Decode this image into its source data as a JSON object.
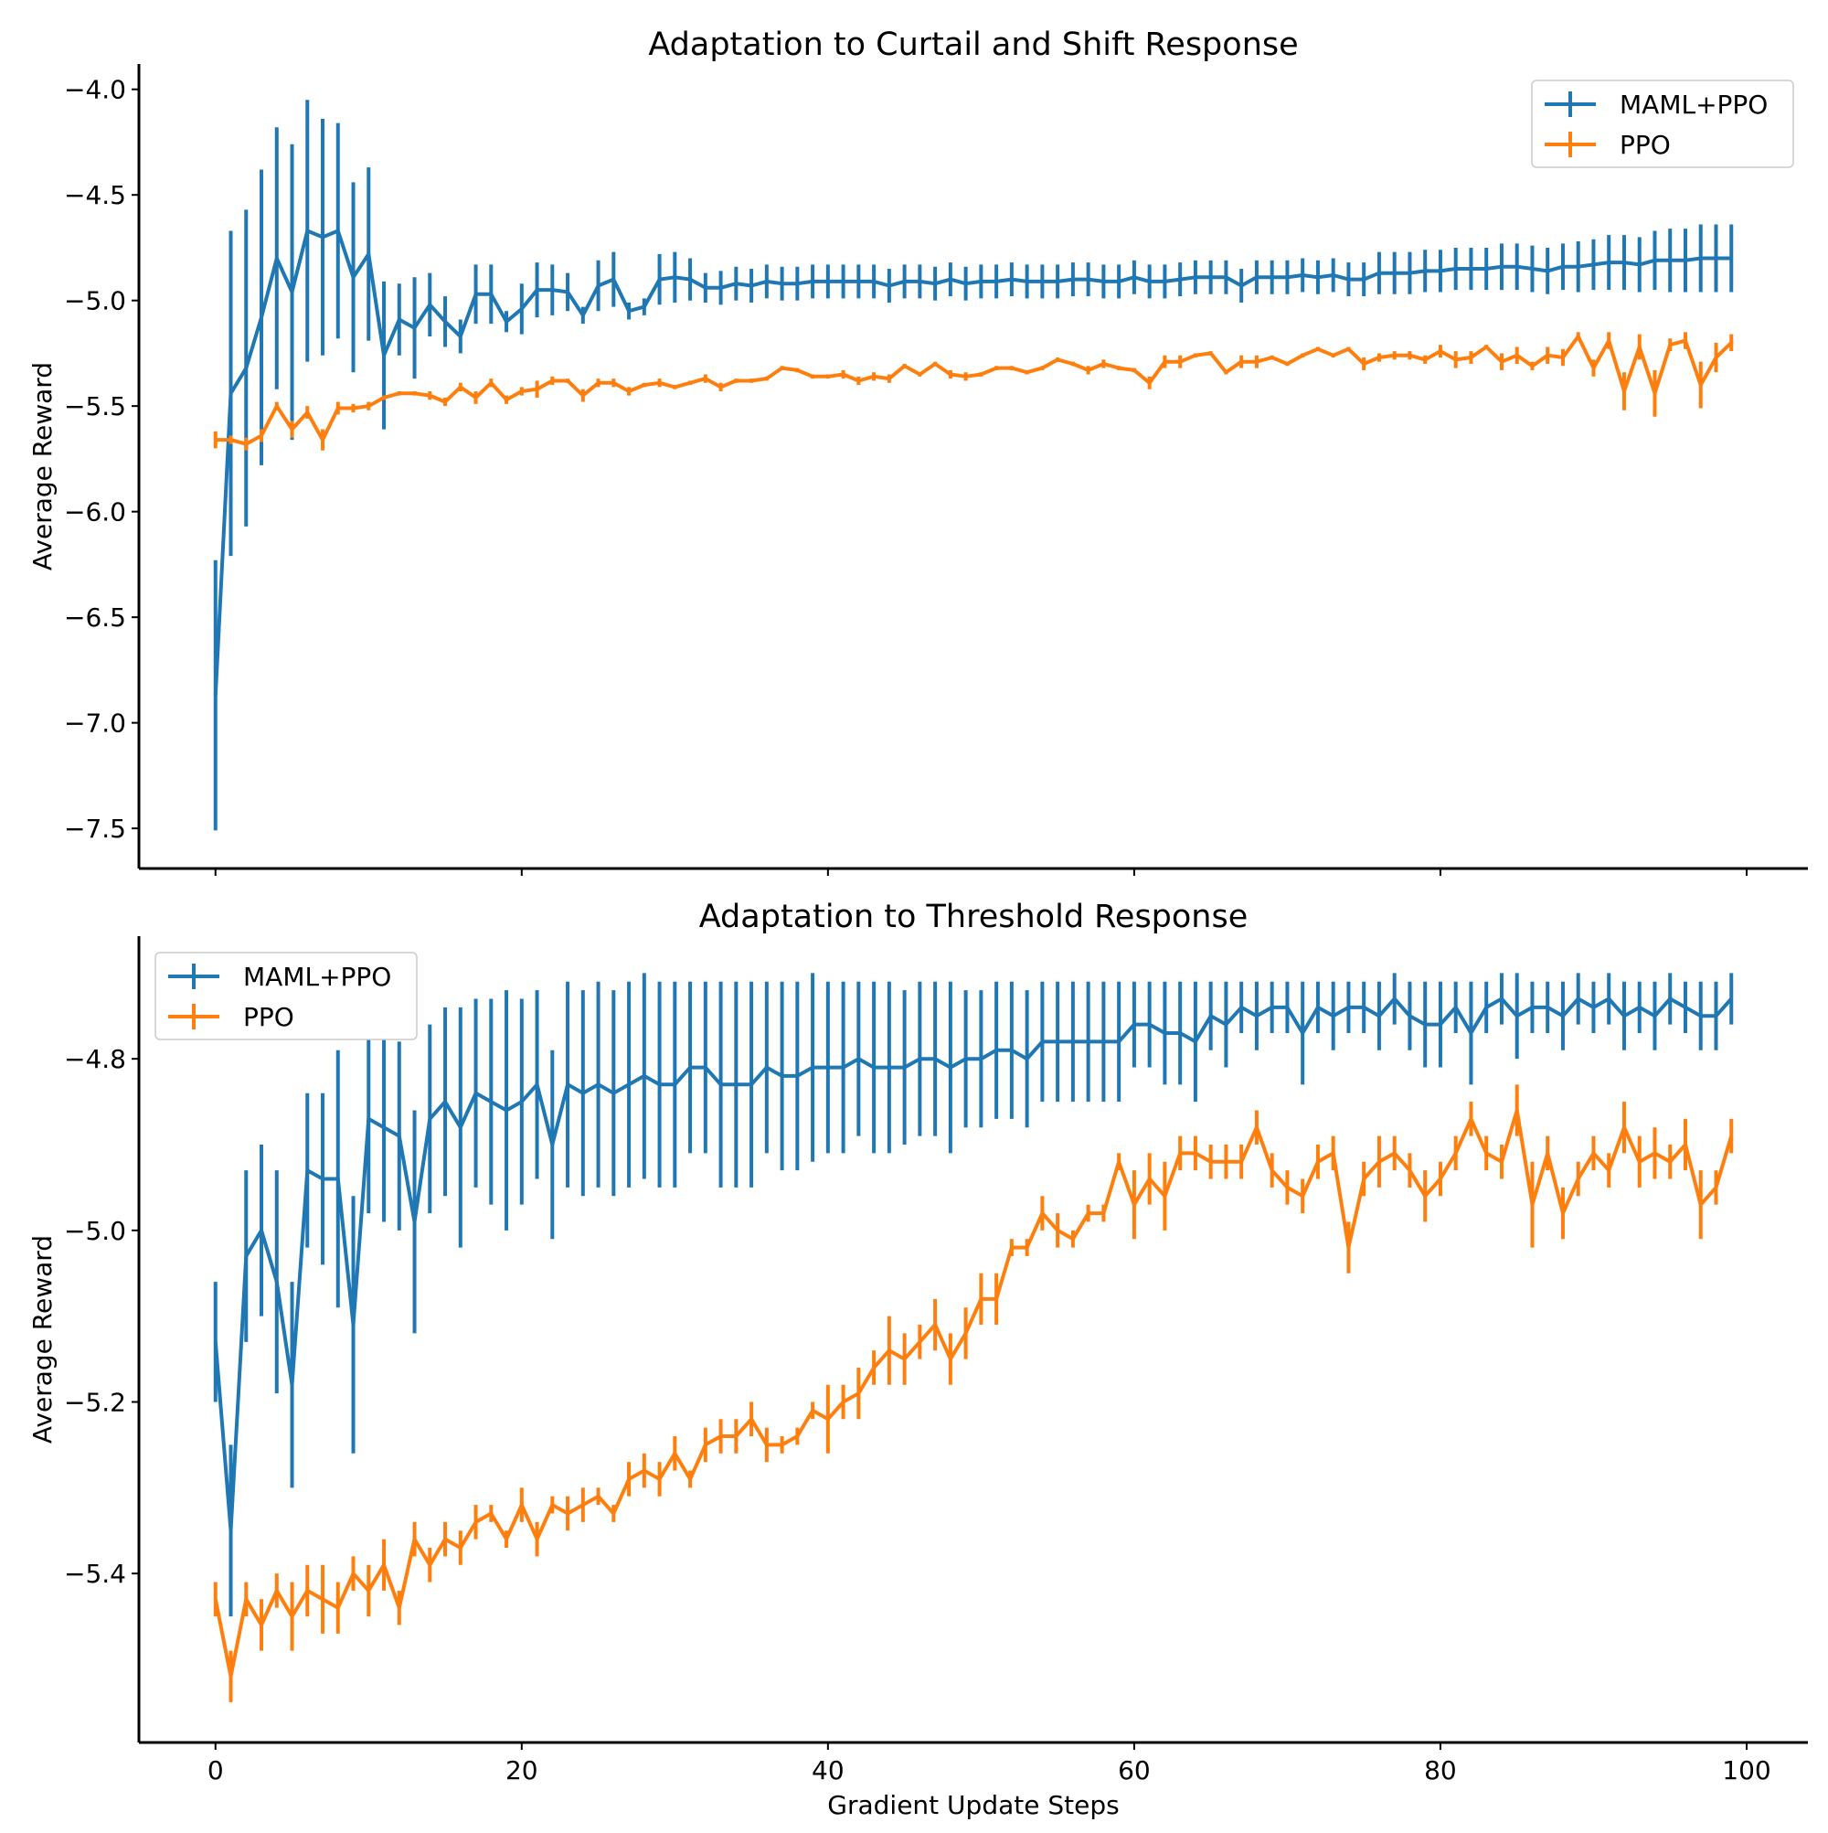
{
  "chart_data": [
    {
      "type": "line",
      "title": "Adaptation to Curtail and Shift Response",
      "xlabel": "",
      "ylabel": "Average Reward",
      "xlim": [
        -5,
        104
      ],
      "ylim": [
        -7.69,
        -3.88
      ],
      "xticks": [
        0,
        20,
        40,
        60,
        80,
        100
      ],
      "show_xtick_labels": false,
      "yticks": [
        -4.0,
        -4.5,
        -5.0,
        -5.5,
        -6.0,
        -6.5,
        -7.0,
        -7.5
      ],
      "ytick_labels": [
        "−4.0",
        "−4.5",
        "−5.0",
        "−5.5",
        "−6.0",
        "−6.5",
        "−7.0",
        "−7.5"
      ],
      "grid": false,
      "legend_position": "upper right",
      "x": [
        0,
        1,
        2,
        3,
        4,
        5,
        6,
        7,
        8,
        9,
        10,
        11,
        12,
        13,
        14,
        15,
        16,
        17,
        18,
        19,
        20,
        21,
        22,
        23,
        24,
        25,
        26,
        27,
        28,
        29,
        30,
        31,
        32,
        33,
        34,
        35,
        36,
        37,
        38,
        39,
        40,
        41,
        42,
        43,
        44,
        45,
        46,
        47,
        48,
        49,
        50,
        51,
        52,
        53,
        54,
        55,
        56,
        57,
        58,
        59,
        60,
        61,
        62,
        63,
        64,
        65,
        66,
        67,
        68,
        69,
        70,
        71,
        72,
        73,
        74,
        75,
        76,
        77,
        78,
        79,
        80,
        81,
        82,
        83,
        84,
        85,
        86,
        87,
        88,
        89,
        90,
        91,
        92,
        93,
        94,
        95,
        96,
        97,
        98,
        99
      ],
      "series": [
        {
          "name": "MAML+PPO",
          "color": "#1f77b4",
          "values": [
            -6.87,
            -5.44,
            -5.32,
            -5.08,
            -4.8,
            -4.96,
            -4.67,
            -4.7,
            -4.67,
            -4.89,
            -4.78,
            -5.26,
            -5.09,
            -5.13,
            -5.02,
            -5.1,
            -5.17,
            -4.97,
            -4.97,
            -5.1,
            -5.04,
            -4.95,
            -4.95,
            -4.96,
            -5.07,
            -4.93,
            -4.9,
            -5.05,
            -5.03,
            -4.9,
            -4.89,
            -4.9,
            -4.94,
            -4.94,
            -4.92,
            -4.93,
            -4.91,
            -4.92,
            -4.92,
            -4.91,
            -4.91,
            -4.91,
            -4.91,
            -4.91,
            -4.93,
            -4.91,
            -4.91,
            -4.92,
            -4.9,
            -4.92,
            -4.91,
            -4.91,
            -4.9,
            -4.91,
            -4.91,
            -4.91,
            -4.9,
            -4.9,
            -4.91,
            -4.91,
            -4.89,
            -4.91,
            -4.91,
            -4.9,
            -4.89,
            -4.89,
            -4.89,
            -4.93,
            -4.89,
            -4.89,
            -4.89,
            -4.88,
            -4.89,
            -4.88,
            -4.9,
            -4.9,
            -4.87,
            -4.87,
            -4.87,
            -4.86,
            -4.86,
            -4.85,
            -4.85,
            -4.85,
            -4.84,
            -4.84,
            -4.85,
            -4.86,
            -4.84,
            -4.84,
            -4.83,
            -4.82,
            -4.82,
            -4.83,
            -4.81,
            -4.81,
            -4.81,
            -4.8,
            -4.8,
            -4.8
          ],
          "errors": [
            0.64,
            0.77,
            0.75,
            0.7,
            0.62,
            0.7,
            0.62,
            0.56,
            0.51,
            0.45,
            0.41,
            0.35,
            0.17,
            0.24,
            0.15,
            0.12,
            0.08,
            0.14,
            0.14,
            0.05,
            0.12,
            0.13,
            0.12,
            0.09,
            0.04,
            0.12,
            0.13,
            0.04,
            0.04,
            0.12,
            0.12,
            0.1,
            0.07,
            0.08,
            0.08,
            0.08,
            0.08,
            0.08,
            0.08,
            0.08,
            0.08,
            0.08,
            0.08,
            0.08,
            0.08,
            0.08,
            0.08,
            0.08,
            0.08,
            0.08,
            0.08,
            0.08,
            0.08,
            0.08,
            0.08,
            0.08,
            0.08,
            0.08,
            0.08,
            0.08,
            0.08,
            0.08,
            0.08,
            0.08,
            0.08,
            0.08,
            0.08,
            0.08,
            0.08,
            0.08,
            0.08,
            0.08,
            0.08,
            0.08,
            0.08,
            0.08,
            0.1,
            0.1,
            0.1,
            0.1,
            0.1,
            0.1,
            0.1,
            0.1,
            0.11,
            0.11,
            0.11,
            0.11,
            0.11,
            0.12,
            0.12,
            0.13,
            0.13,
            0.13,
            0.14,
            0.15,
            0.15,
            0.16,
            0.16,
            0.16
          ]
        },
        {
          "name": "PPO",
          "color": "#ff7f0e",
          "values": [
            -5.66,
            -5.66,
            -5.68,
            -5.64,
            -5.5,
            -5.61,
            -5.53,
            -5.66,
            -5.51,
            -5.51,
            -5.5,
            -5.46,
            -5.44,
            -5.44,
            -5.45,
            -5.48,
            -5.41,
            -5.46,
            -5.39,
            -5.47,
            -5.43,
            -5.42,
            -5.38,
            -5.38,
            -5.45,
            -5.39,
            -5.39,
            -5.43,
            -5.4,
            -5.39,
            -5.41,
            -5.39,
            -5.37,
            -5.41,
            -5.38,
            -5.38,
            -5.37,
            -5.32,
            -5.33,
            -5.36,
            -5.36,
            -5.35,
            -5.38,
            -5.36,
            -5.37,
            -5.31,
            -5.35,
            -5.3,
            -5.35,
            -5.36,
            -5.35,
            -5.32,
            -5.32,
            -5.34,
            -5.32,
            -5.28,
            -5.3,
            -5.33,
            -5.3,
            -5.32,
            -5.33,
            -5.39,
            -5.29,
            -5.29,
            -5.26,
            -5.25,
            -5.34,
            -5.29,
            -5.29,
            -5.27,
            -5.3,
            -5.26,
            -5.23,
            -5.26,
            -5.23,
            -5.3,
            -5.27,
            -5.26,
            -5.26,
            -5.28,
            -5.24,
            -5.28,
            -5.27,
            -5.22,
            -5.29,
            -5.26,
            -5.31,
            -5.26,
            -5.27,
            -5.17,
            -5.32,
            -5.19,
            -5.43,
            -5.22,
            -5.44,
            -5.21,
            -5.19,
            -5.4,
            -5.27,
            -5.2
          ],
          "errors": [
            0.04,
            0.02,
            0.03,
            0.03,
            0.02,
            0.04,
            0.03,
            0.05,
            0.03,
            0.02,
            0.02,
            0.01,
            0.01,
            0.01,
            0.02,
            0.02,
            0.02,
            0.03,
            0.02,
            0.02,
            0.02,
            0.04,
            0.02,
            0.01,
            0.03,
            0.02,
            0.02,
            0.02,
            0.01,
            0.02,
            0.01,
            0.01,
            0.02,
            0.02,
            0.01,
            0.01,
            0.01,
            0.01,
            0.01,
            0.01,
            0.01,
            0.02,
            0.02,
            0.02,
            0.02,
            0.01,
            0.01,
            0.01,
            0.02,
            0.02,
            0.01,
            0.01,
            0.01,
            0.01,
            0.01,
            0.01,
            0.01,
            0.02,
            0.02,
            0.01,
            0.01,
            0.03,
            0.03,
            0.03,
            0.01,
            0.01,
            0.01,
            0.03,
            0.03,
            0.01,
            0.01,
            0.01,
            0.01,
            0.01,
            0.01,
            0.03,
            0.02,
            0.02,
            0.02,
            0.02,
            0.03,
            0.04,
            0.03,
            0.01,
            0.04,
            0.04,
            0.02,
            0.04,
            0.04,
            0.02,
            0.04,
            0.04,
            0.09,
            0.06,
            0.11,
            0.03,
            0.04,
            0.11,
            0.07,
            0.04
          ]
        }
      ]
    },
    {
      "type": "line",
      "title": "Adaptation to Threshold Response",
      "xlabel": "Gradient Update Steps",
      "ylabel": "Average Reward",
      "xlim": [
        -5,
        104
      ],
      "ylim": [
        -5.597,
        -4.657
      ],
      "xticks": [
        0,
        20,
        40,
        60,
        80,
        100
      ],
      "xtick_labels": [
        "0",
        "20",
        "40",
        "60",
        "80",
        "100"
      ],
      "show_xtick_labels": true,
      "yticks": [
        -4.8,
        -5.0,
        -5.2,
        -5.4
      ],
      "ytick_labels": [
        "−4.8",
        "−5.0",
        "−5.2",
        "−5.4"
      ],
      "grid": false,
      "legend_position": "upper left",
      "x": [
        0,
        1,
        2,
        3,
        4,
        5,
        6,
        7,
        8,
        9,
        10,
        11,
        12,
        13,
        14,
        15,
        16,
        17,
        18,
        19,
        20,
        21,
        22,
        23,
        24,
        25,
        26,
        27,
        28,
        29,
        30,
        31,
        32,
        33,
        34,
        35,
        36,
        37,
        38,
        39,
        40,
        41,
        42,
        43,
        44,
        45,
        46,
        47,
        48,
        49,
        50,
        51,
        52,
        53,
        54,
        55,
        56,
        57,
        58,
        59,
        60,
        61,
        62,
        63,
        64,
        65,
        66,
        67,
        68,
        69,
        70,
        71,
        72,
        73,
        74,
        75,
        76,
        77,
        78,
        79,
        80,
        81,
        82,
        83,
        84,
        85,
        86,
        87,
        88,
        89,
        90,
        91,
        92,
        93,
        94,
        95,
        96,
        97,
        98,
        99
      ],
      "series": [
        {
          "name": "MAML+PPO",
          "color": "#1f77b4",
          "values": [
            -5.13,
            -5.35,
            -5.03,
            -5.0,
            -5.06,
            -5.18,
            -4.93,
            -4.94,
            -4.94,
            -5.11,
            -4.87,
            -4.88,
            -4.89,
            -4.99,
            -4.87,
            -4.85,
            -4.88,
            -4.84,
            -4.85,
            -4.86,
            -4.85,
            -4.83,
            -4.9,
            -4.83,
            -4.84,
            -4.83,
            -4.84,
            -4.83,
            -4.82,
            -4.83,
            -4.83,
            -4.81,
            -4.81,
            -4.83,
            -4.83,
            -4.83,
            -4.81,
            -4.82,
            -4.82,
            -4.81,
            -4.81,
            -4.81,
            -4.8,
            -4.81,
            -4.81,
            -4.81,
            -4.8,
            -4.8,
            -4.81,
            -4.8,
            -4.8,
            -4.79,
            -4.79,
            -4.8,
            -4.78,
            -4.78,
            -4.78,
            -4.78,
            -4.78,
            -4.78,
            -4.76,
            -4.76,
            -4.77,
            -4.77,
            -4.78,
            -4.75,
            -4.76,
            -4.74,
            -4.75,
            -4.74,
            -4.74,
            -4.77,
            -4.74,
            -4.75,
            -4.74,
            -4.74,
            -4.75,
            -4.73,
            -4.75,
            -4.76,
            -4.76,
            -4.74,
            -4.77,
            -4.74,
            -4.73,
            -4.75,
            -4.74,
            -4.74,
            -4.75,
            -4.73,
            -4.74,
            -4.73,
            -4.75,
            -4.74,
            -4.75,
            -4.73,
            -4.74,
            -4.75,
            -4.75,
            -4.73
          ],
          "errors": [
            0.07,
            0.1,
            0.1,
            0.1,
            0.13,
            0.12,
            0.09,
            0.1,
            0.15,
            0.15,
            0.11,
            0.11,
            0.11,
            0.13,
            0.11,
            0.11,
            0.14,
            0.11,
            0.12,
            0.14,
            0.12,
            0.11,
            0.11,
            0.12,
            0.12,
            0.12,
            0.12,
            0.12,
            0.12,
            0.12,
            0.12,
            0.1,
            0.1,
            0.12,
            0.12,
            0.12,
            0.1,
            0.11,
            0.11,
            0.11,
            0.1,
            0.1,
            0.09,
            0.1,
            0.1,
            0.09,
            0.09,
            0.09,
            0.1,
            0.08,
            0.08,
            0.08,
            0.08,
            0.08,
            0.07,
            0.07,
            0.07,
            0.07,
            0.07,
            0.07,
            0.05,
            0.05,
            0.06,
            0.06,
            0.07,
            0.04,
            0.05,
            0.03,
            0.04,
            0.03,
            0.03,
            0.06,
            0.03,
            0.04,
            0.03,
            0.03,
            0.04,
            0.03,
            0.04,
            0.05,
            0.05,
            0.03,
            0.06,
            0.03,
            0.03,
            0.05,
            0.03,
            0.03,
            0.04,
            0.03,
            0.03,
            0.03,
            0.04,
            0.03,
            0.04,
            0.03,
            0.03,
            0.04,
            0.04,
            0.03
          ]
        },
        {
          "name": "PPO",
          "color": "#ff7f0e",
          "values": [
            -5.43,
            -5.52,
            -5.43,
            -5.46,
            -5.42,
            -5.45,
            -5.42,
            -5.43,
            -5.44,
            -5.4,
            -5.42,
            -5.39,
            -5.44,
            -5.36,
            -5.39,
            -5.36,
            -5.37,
            -5.34,
            -5.33,
            -5.36,
            -5.32,
            -5.36,
            -5.32,
            -5.33,
            -5.32,
            -5.31,
            -5.33,
            -5.29,
            -5.28,
            -5.29,
            -5.26,
            -5.29,
            -5.25,
            -5.24,
            -5.24,
            -5.22,
            -5.25,
            -5.25,
            -5.24,
            -5.21,
            -5.22,
            -5.2,
            -5.19,
            -5.16,
            -5.14,
            -5.15,
            -5.13,
            -5.11,
            -5.15,
            -5.12,
            -5.08,
            -5.08,
            -5.02,
            -5.02,
            -4.98,
            -5.0,
            -5.01,
            -4.98,
            -4.98,
            -4.92,
            -4.97,
            -4.94,
            -4.96,
            -4.91,
            -4.91,
            -4.92,
            -4.92,
            -4.92,
            -4.88,
            -4.93,
            -4.95,
            -4.96,
            -4.92,
            -4.91,
            -5.02,
            -4.94,
            -4.92,
            -4.91,
            -4.93,
            -4.96,
            -4.94,
            -4.91,
            -4.87,
            -4.91,
            -4.92,
            -4.86,
            -4.97,
            -4.91,
            -4.98,
            -4.94,
            -4.91,
            -4.93,
            -4.88,
            -4.92,
            -4.91,
            -4.92,
            -4.9,
            -4.97,
            -4.95,
            -4.89
          ],
          "errors": [
            0.02,
            0.03,
            0.02,
            0.03,
            0.02,
            0.04,
            0.03,
            0.04,
            0.03,
            0.02,
            0.03,
            0.03,
            0.02,
            0.02,
            0.02,
            0.02,
            0.02,
            0.02,
            0.01,
            0.01,
            0.02,
            0.02,
            0.01,
            0.02,
            0.02,
            0.01,
            0.01,
            0.02,
            0.02,
            0.02,
            0.02,
            0.01,
            0.02,
            0.02,
            0.02,
            0.02,
            0.02,
            0.01,
            0.01,
            0.01,
            0.04,
            0.02,
            0.03,
            0.02,
            0.04,
            0.03,
            0.02,
            0.03,
            0.03,
            0.03,
            0.03,
            0.03,
            0.01,
            0.01,
            0.02,
            0.02,
            0.01,
            0.01,
            0.01,
            0.01,
            0.04,
            0.03,
            0.04,
            0.02,
            0.02,
            0.02,
            0.02,
            0.02,
            0.02,
            0.02,
            0.02,
            0.02,
            0.02,
            0.02,
            0.03,
            0.02,
            0.03,
            0.02,
            0.02,
            0.03,
            0.02,
            0.02,
            0.02,
            0.02,
            0.02,
            0.03,
            0.05,
            0.02,
            0.03,
            0.02,
            0.02,
            0.02,
            0.03,
            0.03,
            0.03,
            0.02,
            0.03,
            0.04,
            0.02,
            0.02
          ]
        }
      ]
    }
  ]
}
